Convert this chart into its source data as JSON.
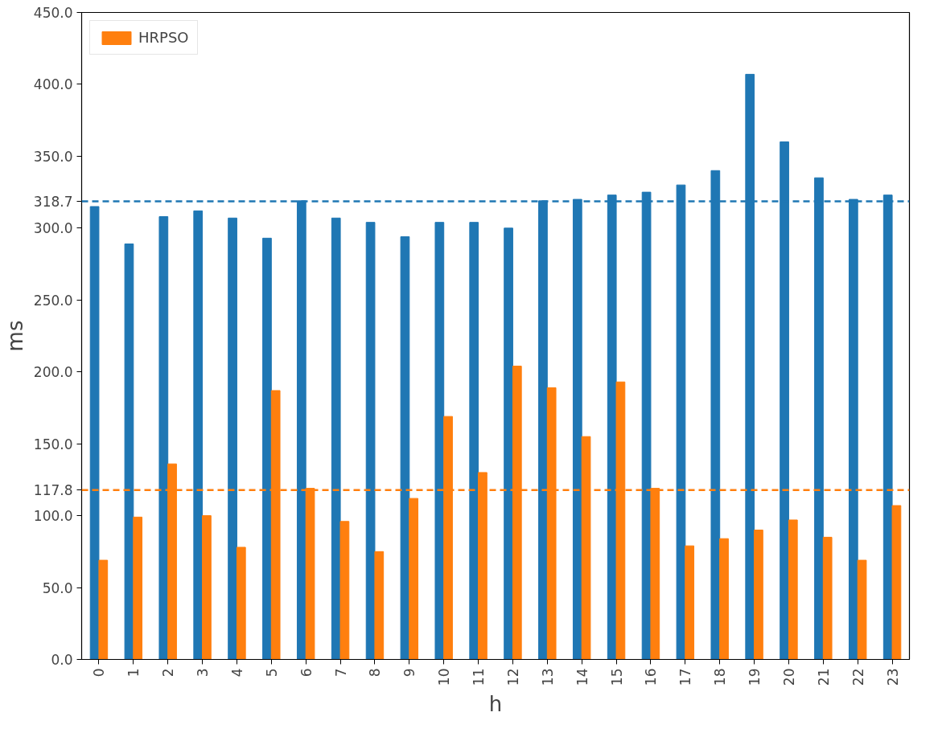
{
  "chart_data": {
    "type": "bar",
    "xlabel": "h",
    "ylabel": "ms",
    "categories": [
      "0",
      "1",
      "2",
      "3",
      "4",
      "5",
      "6",
      "7",
      "8",
      "9",
      "10",
      "11",
      "12",
      "13",
      "14",
      "15",
      "16",
      "17",
      "18",
      "19",
      "20",
      "21",
      "22",
      "23"
    ],
    "series": [
      {
        "color": "#1f77b4",
        "values": [
          315,
          289,
          308,
          312,
          307,
          293,
          319,
          307,
          304,
          294,
          304,
          304,
          300,
          319,
          320,
          323,
          325,
          330,
          340,
          407,
          360,
          335,
          320,
          323
        ]
      },
      {
        "name": "HRPSO",
        "color": "#ff7f0e",
        "values": [
          69,
          99,
          136,
          100,
          78,
          187,
          119,
          96,
          75,
          112,
          169,
          130,
          204,
          189,
          155,
          193,
          119,
          79,
          84,
          90,
          97,
          85,
          69,
          107
        ]
      }
    ],
    "ylim": [
      0,
      450
    ],
    "yticks": [
      {
        "value": 0,
        "label": "0.0"
      },
      {
        "value": 50,
        "label": "50.0"
      },
      {
        "value": 100,
        "label": "100.0"
      },
      {
        "value": 117.8,
        "label": "117.8"
      },
      {
        "value": 150,
        "label": "150.0"
      },
      {
        "value": 200,
        "label": "200.0"
      },
      {
        "value": 250,
        "label": "250.0"
      },
      {
        "value": 300,
        "label": "300.0"
      },
      {
        "value": 318.7,
        "label": "318.7"
      },
      {
        "value": 350,
        "label": "350.0"
      },
      {
        "value": 400,
        "label": "400.0"
      },
      {
        "value": 450,
        "label": "450.0"
      }
    ],
    "ref_lines": [
      {
        "axis": "y",
        "value": 318.7,
        "color": "#1f77b4",
        "line_style": "dashed"
      },
      {
        "axis": "y",
        "value": 117.8,
        "color": "#ff7f0e",
        "line_style": "dashed"
      }
    ],
    "legend": "top left",
    "grid": false
  }
}
